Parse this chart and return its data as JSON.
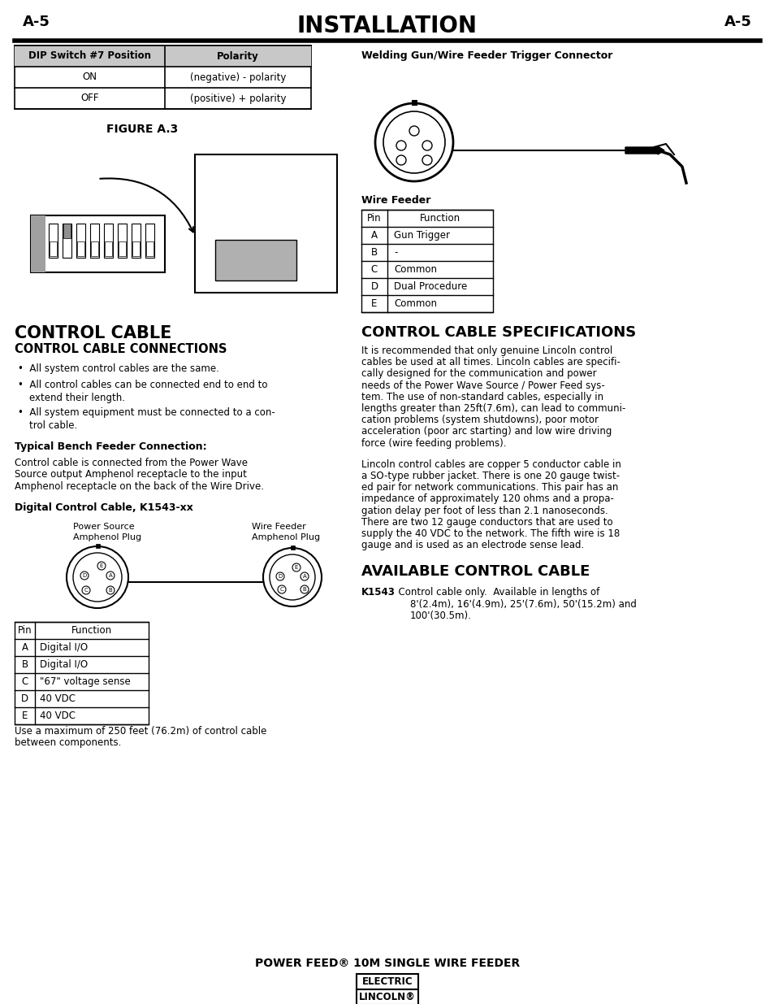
{
  "page_label": "A-5",
  "title": "INSTALLATION",
  "bg_color": "#ffffff",
  "dip_table": {
    "headers": [
      "DIP Switch #7 Position",
      "Polarity"
    ],
    "rows": [
      [
        "ON",
        "(negative) - polarity"
      ],
      [
        "OFF",
        "(positive) + polarity"
      ]
    ]
  },
  "figure_label": "FIGURE A.3",
  "trigger_connector_title": "Welding Gun/Wire Feeder Trigger Connector",
  "wire_feeder_table": {
    "title": "Wire Feeder",
    "headers": [
      "Pin",
      "Function"
    ],
    "rows": [
      [
        "A",
        "Gun Trigger"
      ],
      [
        "B",
        "-"
      ],
      [
        "C",
        "Common"
      ],
      [
        "D",
        "Dual Procedure"
      ],
      [
        "E",
        "Common"
      ]
    ]
  },
  "control_cable_title": "CONTROL CABLE",
  "control_cable_connections_title": "CONTROL CABLE CONNECTIONS",
  "bullet1": "All system control cables are the same.",
  "bullet2a": "All control cables can be connected end to end to",
  "bullet2b": "extend their length.",
  "bullet3a": "All system equipment must be connected to a con-",
  "bullet3b": "trol cable.",
  "typical_bench_title": "Typical Bench Feeder Connection:",
  "typical_bench_text1": "Control cable is connected from the Power Wave",
  "typical_bench_text2": "Source output Amphenol receptacle to the input",
  "typical_bench_text3": "Amphenol receptacle on the back of the Wire Drive.",
  "digital_cable_title": "Digital Control Cable, K1543-xx",
  "power_source_label1": "Power Source",
  "power_source_label2": "Amphenol Plug",
  "wire_feeder_label1": "Wire Feeder",
  "wire_feeder_label2": "Amphenol Plug",
  "lc_pin_labels": [
    "E",
    "A",
    "D",
    "B",
    "C"
  ],
  "rc_pin_labels": [
    "E",
    "A",
    "D",
    "B",
    "C"
  ],
  "pin_table2": {
    "headers": [
      "Pin",
      "Function"
    ],
    "rows": [
      [
        "A",
        "Digital I/O"
      ],
      [
        "B",
        "Digital I/O"
      ],
      [
        "C",
        "\"67\" voltage sense"
      ],
      [
        "D",
        "40 VDC"
      ],
      [
        "E",
        "40 VDC"
      ]
    ]
  },
  "max_feet_text1": "Use a maximum of 250 feet (76.2m) of control cable",
  "max_feet_text2": "between components.",
  "control_cable_specs_title": "CONTROL CABLE SPECIFICATIONS",
  "specs_para1_lines": [
    "It is recommended that only genuine Lincoln control",
    "cables be used at all times. Lincoln cables are specifi-",
    "cally designed for the communication and power",
    "needs of the Power Wave Source / Power Feed sys-",
    "tem. The use of non-standard cables, especially in",
    "lengths greater than 25ft(7.6m), can lead to communi-",
    "cation problems (system shutdowns), poor motor",
    "acceleration (poor arc starting) and low wire driving",
    "force (wire feeding problems)."
  ],
  "specs_para2_lines": [
    "Lincoln control cables are copper 5 conductor cable in",
    "a SO-type rubber jacket. There is one 20 gauge twist-",
    "ed pair for network communications. This pair has an",
    "impedance of approximately 120 ohms and a propa-",
    "gation delay per foot of less than 2.1 nanoseconds.",
    "There are two 12 gauge conductors that are used to",
    "supply the 40 VDC to the network. The fifth wire is 18",
    "gauge and is used as an electrode sense lead."
  ],
  "available_cable_title": "AVAILABLE CONTROL CABLE",
  "k1543_bold": "K1543",
  "k1543_text1": "  Control cable only.  Available in lengths of",
  "k1543_text2": "8'(2.4m), 16'(4.9m), 25'(7.6m), 50'(15.2m) and",
  "k1543_text3": "100'(30.5m).",
  "footer_text": "POWER FEED® 10M SINGLE WIRE FEEDER",
  "footer_logo_line1": "LINCOLN®",
  "footer_logo_line2": "ELECTRIC"
}
